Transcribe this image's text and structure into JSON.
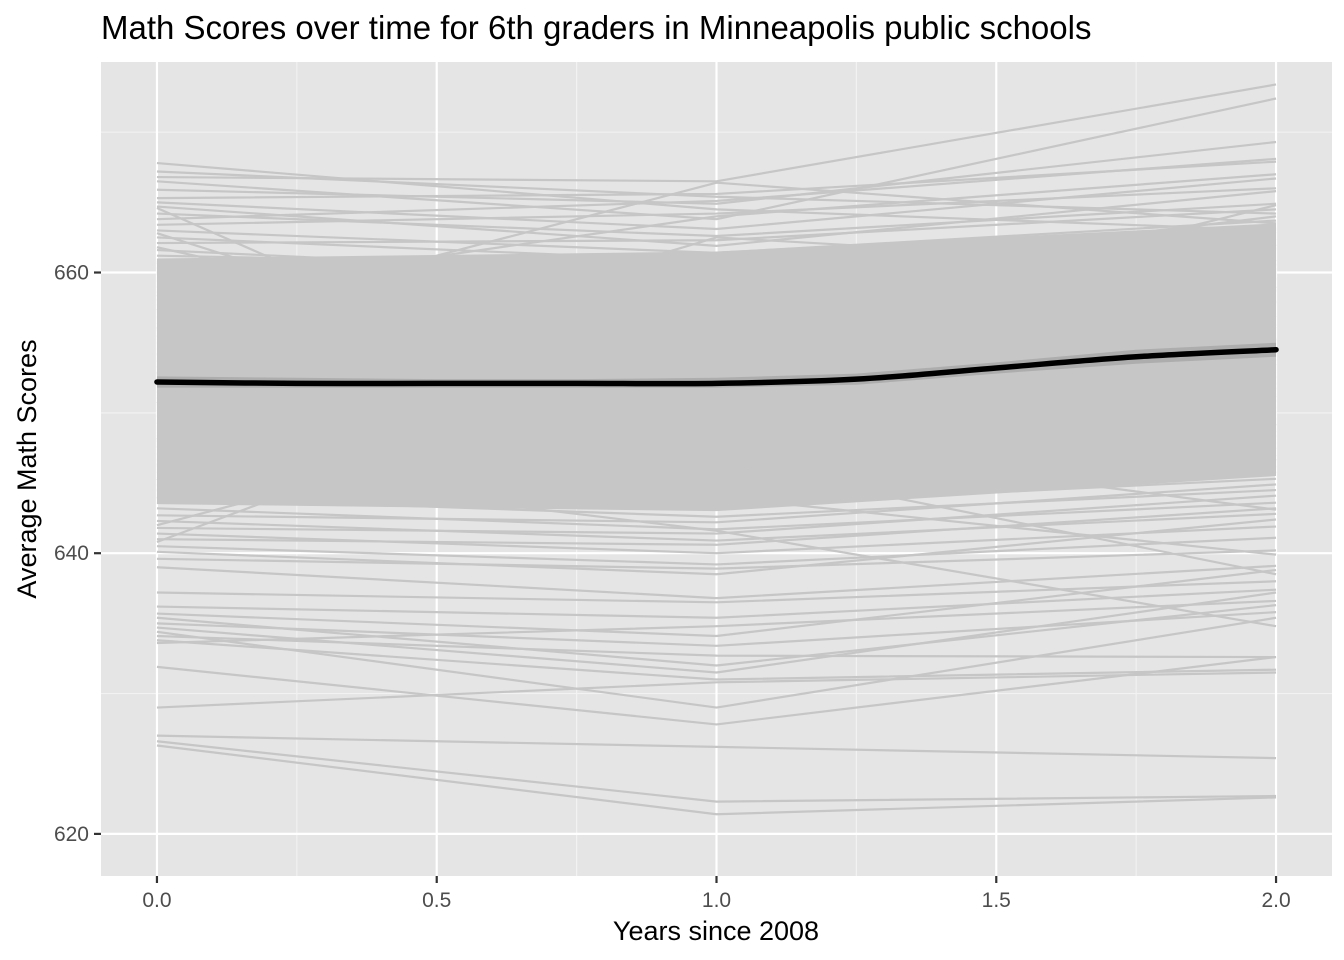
{
  "chart_data": {
    "type": "line",
    "title": "Math Scores over time for 6th graders in Minneapolis public schools",
    "xlabel": "Years since 2008",
    "ylabel": "Average Math Scores",
    "x_ticks": [
      "0.0",
      "0.5",
      "1.0",
      "1.5",
      "2.0"
    ],
    "x_tick_values": [
      0,
      0.5,
      1,
      1.5,
      2
    ],
    "y_ticks": [
      "620",
      "640",
      "660"
    ],
    "y_tick_values": [
      620,
      640,
      660
    ],
    "xlim": [
      -0.1,
      2.1
    ],
    "ylim": [
      617,
      675
    ],
    "grid": true,
    "legend": "none",
    "colors": {
      "panel_background": "#e5e5e5",
      "grid_major": "#ffffff",
      "grid_minor": "#f2f2f2",
      "individual_lines": "#c6c6c6",
      "smooth_line": "#000000",
      "confidence_band": "#999999"
    },
    "x": [
      0,
      1,
      2
    ],
    "series_note_free": true,
    "individual_series": [
      [
        667.8,
        664.5,
        663.0
      ],
      [
        667.2,
        665.4,
        664.2
      ],
      [
        666.8,
        666.5,
        673.4
      ],
      [
        666.5,
        663.8,
        672.4
      ],
      [
        665.9,
        664.9,
        669.3
      ],
      [
        665.3,
        665.6,
        667.9
      ],
      [
        665.0,
        663.1,
        666.7
      ],
      [
        664.7,
        661.9,
        665.8
      ],
      [
        664.2,
        662.6,
        664.9
      ],
      [
        663.8,
        665.1,
        668.1
      ],
      [
        663.4,
        664.2,
        666.0
      ],
      [
        663.0,
        661.4,
        663.7
      ],
      [
        662.5,
        660.8,
        662.9
      ],
      [
        662.1,
        662.3,
        664.5
      ],
      [
        661.6,
        659.7,
        661.8
      ],
      [
        661.2,
        660.4,
        663.2
      ],
      [
        660.8,
        658.9,
        660.6
      ],
      [
        660.3,
        661.2,
        662.4
      ],
      [
        659.9,
        658.1,
        659.5
      ],
      [
        659.4,
        659.6,
        661.7
      ],
      [
        659.0,
        657.5,
        658.7
      ],
      [
        658.6,
        658.8,
        660.9
      ],
      [
        658.1,
        656.4,
        657.8
      ],
      [
        657.7,
        657.9,
        659.6
      ],
      [
        657.2,
        655.8,
        657.1
      ],
      [
        656.8,
        656.9,
        658.8
      ],
      [
        656.4,
        654.7,
        656.3
      ],
      [
        655.9,
        655.6,
        657.9
      ],
      [
        655.5,
        653.9,
        655.4
      ],
      [
        655.0,
        654.8,
        656.9
      ],
      [
        654.6,
        652.8,
        654.7
      ],
      [
        654.2,
        653.7,
        656.1
      ],
      [
        653.7,
        651.9,
        653.8
      ],
      [
        653.3,
        652.6,
        655.2
      ],
      [
        652.8,
        651.1,
        652.9
      ],
      [
        652.4,
        651.8,
        654.4
      ],
      [
        652.0,
        650.2,
        652.1
      ],
      [
        651.5,
        650.9,
        653.5
      ],
      [
        651.1,
        649.4,
        651.2
      ],
      [
        650.6,
        650.1,
        652.6
      ],
      [
        650.2,
        648.5,
        650.4
      ],
      [
        649.8,
        649.2,
        651.8
      ],
      [
        649.3,
        647.6,
        649.6
      ],
      [
        648.9,
        648.3,
        650.9
      ],
      [
        648.4,
        646.8,
        648.7
      ],
      [
        648.0,
        647.4,
        650.1
      ],
      [
        647.6,
        645.9,
        647.9
      ],
      [
        647.1,
        646.6,
        649.2
      ],
      [
        646.7,
        645.1,
        647.0
      ],
      [
        646.2,
        645.7,
        648.4
      ],
      [
        645.8,
        644.2,
        646.2
      ],
      [
        645.4,
        644.9,
        647.5
      ],
      [
        644.9,
        643.4,
        645.3
      ],
      [
        644.5,
        643.9,
        646.7
      ],
      [
        644.0,
        642.6,
        644.5
      ],
      [
        643.6,
        643.1,
        645.8
      ],
      [
        643.2,
        641.7,
        643.6
      ],
      [
        642.7,
        642.2,
        644.9
      ],
      [
        642.3,
        640.9,
        642.8
      ],
      [
        641.8,
        641.4,
        644.1
      ],
      [
        641.4,
        640.0,
        641.9
      ],
      [
        641.0,
        640.6,
        643.2
      ],
      [
        640.5,
        639.2,
        641.1
      ],
      [
        640.1,
        638.5,
        642.4
      ],
      [
        639.6,
        638.9,
        640.2
      ],
      [
        639.0,
        636.8,
        639.1
      ],
      [
        637.2,
        636.5,
        638.0
      ],
      [
        636.2,
        635.4,
        637.4
      ],
      [
        635.7,
        634.1,
        638.8
      ],
      [
        635.4,
        632.0,
        636.3
      ],
      [
        635.0,
        633.4,
        635.8
      ],
      [
        634.7,
        631.5,
        637.2
      ],
      [
        634.4,
        629.0,
        635.4
      ],
      [
        634.1,
        632.7,
        632.6
      ],
      [
        633.8,
        631.0,
        631.7
      ],
      [
        633.6,
        634.8,
        636.6
      ],
      [
        631.9,
        627.8,
        632.6
      ],
      [
        629.0,
        630.8,
        631.5
      ],
      [
        627.0,
        626.2,
        625.4
      ],
      [
        626.6,
        622.3,
        622.7
      ],
      [
        626.3,
        621.4,
        622.6
      ],
      [
        656.0,
        666.4,
        663.5
      ],
      [
        658.3,
        664.0,
        667.0
      ],
      [
        660.7,
        655.0,
        664.8
      ],
      [
        662.8,
        650.2,
        659.0
      ],
      [
        664.6,
        647.1,
        655.3
      ],
      [
        650.7,
        662.5,
        660.2
      ],
      [
        648.1,
        659.3,
        664.0
      ],
      [
        645.2,
        657.0,
        662.0
      ],
      [
        642.0,
        652.4,
        658.0
      ],
      [
        640.8,
        655.6,
        649.1
      ],
      [
        643.9,
        646.5,
        638.5
      ],
      [
        646.4,
        641.6,
        634.8
      ],
      [
        652.9,
        644.0,
        639.9
      ],
      [
        657.4,
        648.3,
        643.1
      ],
      [
        661.8,
        652.9,
        646.6
      ]
    ],
    "fill_band": {
      "x": [
        0,
        1,
        2
      ],
      "lower": [
        643.5,
        643.0,
        645.5
      ],
      "upper": [
        661.0,
        661.5,
        663.5
      ]
    },
    "smooth": {
      "x": [
        0,
        0.25,
        0.5,
        0.75,
        1.0,
        1.25,
        1.5,
        1.75,
        2.0
      ],
      "y": [
        652.2,
        652.1,
        652.1,
        652.1,
        652.1,
        652.4,
        653.2,
        654.0,
        654.5
      ],
      "se_lower": [
        651.8,
        651.8,
        651.8,
        651.8,
        651.8,
        652.0,
        652.8,
        653.5,
        654.0
      ],
      "se_upper": [
        652.6,
        652.5,
        652.4,
        652.4,
        652.5,
        652.8,
        653.6,
        654.5,
        655.0
      ]
    }
  }
}
